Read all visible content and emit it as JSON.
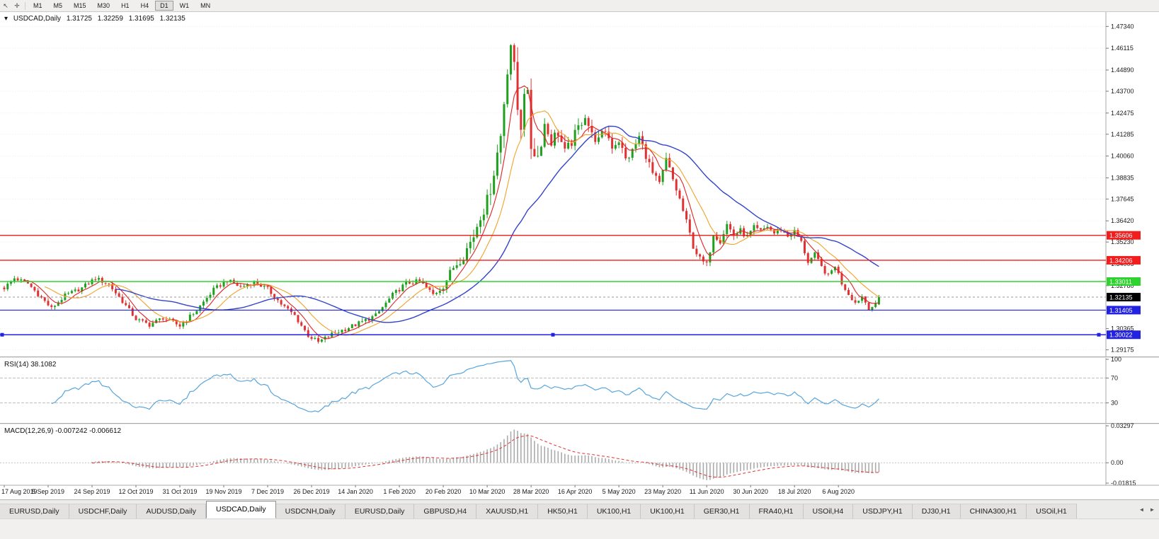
{
  "toolbar": {
    "icons": [
      {
        "name": "pointer-cursor-icon",
        "glyph": "↖"
      },
      {
        "name": "crosshair-icon",
        "glyph": "✛"
      }
    ],
    "timeframes": [
      "M1",
      "M5",
      "M15",
      "M30",
      "H1",
      "H4",
      "D1",
      "W1",
      "MN"
    ],
    "active_timeframe": "D1"
  },
  "chart": {
    "header": {
      "menu_icon": "▾",
      "symbol": "USDCAD,Daily",
      "open": "1.31725",
      "high": "1.32259",
      "low": "1.31695",
      "close": "1.32135"
    }
  },
  "chart_data": [
    {
      "type": "candlestick",
      "symbol": "USDCAD",
      "timeframe": "Daily",
      "ohlc": {
        "open": 1.31725,
        "high": 1.32259,
        "low": 1.31695,
        "close": 1.32135
      },
      "bars": 260,
      "x_label_every_bars": 13,
      "x_labels": [
        "17 Aug 2019",
        "5 Sep 2019",
        "24 Sep 2019",
        "12 Oct 2019",
        "31 Oct 2019",
        "19 Nov 2019",
        "7 Dec 2019",
        "26 Dec 2019",
        "14 Jan 2020",
        "1 Feb 2020",
        "20 Feb 2020",
        "10 Mar 2020",
        "28 Mar 2020",
        "16 Apr 2020",
        "5 May 2020",
        "23 May 2020",
        "11 Jun 2020",
        "30 Jun 2020",
        "18 Jul 2020",
        "6 Aug 2020"
      ],
      "y_axis_ticks": [
        "1.47340",
        "1.46115",
        "1.44890",
        "1.43700",
        "1.42475",
        "1.41285",
        "1.40060",
        "1.38835",
        "1.37645",
        "1.36420",
        "1.35230",
        "1.34005",
        "1.32780",
        "1.30365",
        "1.29175"
      ],
      "y_range": [
        1.288,
        1.4795
      ],
      "close_keypoints": [
        [
          0,
          1.3265
        ],
        [
          3,
          1.332
        ],
        [
          7,
          1.329
        ],
        [
          11,
          1.321
        ],
        [
          14,
          1.315
        ],
        [
          18,
          1.3222
        ],
        [
          23,
          1.3265
        ],
        [
          27,
          1.332
        ],
        [
          31,
          1.3285
        ],
        [
          35,
          1.319
        ],
        [
          39,
          1.309
        ],
        [
          43,
          1.3058
        ],
        [
          47,
          1.3098
        ],
        [
          52,
          1.3052
        ],
        [
          57,
          1.314
        ],
        [
          62,
          1.3255
        ],
        [
          66,
          1.3308
        ],
        [
          70,
          1.327
        ],
        [
          74,
          1.3298
        ],
        [
          78,
          1.3258
        ],
        [
          82,
          1.3175
        ],
        [
          86,
          1.311
        ],
        [
          90,
          1.2998
        ],
        [
          93,
          1.296
        ],
        [
          97,
          1.3005
        ],
        [
          104,
          1.3058
        ],
        [
          110,
          1.311
        ],
        [
          115,
          1.3225
        ],
        [
          119,
          1.3292
        ],
        [
          123,
          1.3302
        ],
        [
          127,
          1.3228
        ],
        [
          130,
          1.3278
        ],
        [
          133,
          1.3382
        ],
        [
          136,
          1.3448
        ],
        [
          139,
          1.356
        ],
        [
          141,
          1.3682
        ],
        [
          143,
          1.3745
        ],
        [
          145,
          1.3925
        ],
        [
          147,
          1.412
        ],
        [
          149,
          1.451
        ],
        [
          150,
          1.4642
        ],
        [
          151,
          1.4485
        ],
        [
          152,
          1.427
        ],
        [
          153,
          1.4185
        ],
        [
          154,
          1.439
        ],
        [
          155,
          1.4328
        ],
        [
          156,
          1.4062
        ],
        [
          158,
          1.4005
        ],
        [
          160,
          1.4185
        ],
        [
          162,
          1.4092
        ],
        [
          164,
          1.4142
        ],
        [
          166,
          1.4022
        ],
        [
          168,
          1.4085
        ],
        [
          170,
          1.4165
        ],
        [
          172,
          1.4238
        ],
        [
          174,
          1.4122
        ],
        [
          176,
          1.4092
        ],
        [
          178,
          1.4152
        ],
        [
          180,
          1.4062
        ],
        [
          182,
          1.4095
        ],
        [
          184,
          1.3985
        ],
        [
          186,
          1.4032
        ],
        [
          188,
          1.4112
        ],
        [
          190,
          1.4012
        ],
        [
          192,
          1.3905
        ],
        [
          194,
          1.3845
        ],
        [
          196,
          1.3985
        ],
        [
          198,
          1.3872
        ],
        [
          200,
          1.3762
        ],
        [
          202,
          1.3632
        ],
        [
          204,
          1.3502
        ],
        [
          206,
          1.3425
        ],
        [
          208,
          1.3392
        ],
        [
          210,
          1.3572
        ],
        [
          212,
          1.3532
        ],
        [
          214,
          1.3622
        ],
        [
          216,
          1.3562
        ],
        [
          218,
          1.3585
        ],
        [
          220,
          1.3552
        ],
        [
          222,
          1.3602
        ],
        [
          224,
          1.3582
        ],
        [
          226,
          1.3612
        ],
        [
          228,
          1.3572
        ],
        [
          230,
          1.3592
        ],
        [
          232,
          1.3556
        ],
        [
          234,
          1.3582
        ],
        [
          236,
          1.3522
        ],
        [
          238,
          1.3412
        ],
        [
          240,
          1.3452
        ],
        [
          242,
          1.3382
        ],
        [
          244,
          1.3332
        ],
        [
          246,
          1.3392
        ],
        [
          248,
          1.3292
        ],
        [
          250,
          1.3232
        ],
        [
          252,
          1.3182
        ],
        [
          254,
          1.3218
        ],
        [
          256,
          1.3152
        ],
        [
          258,
          1.317
        ],
        [
          259,
          1.32135
        ]
      ],
      "volatility_keypoints": [
        [
          0,
          0.003
        ],
        [
          90,
          0.0032
        ],
        [
          125,
          0.0035
        ],
        [
          136,
          0.0075
        ],
        [
          145,
          0.013
        ],
        [
          152,
          0.015
        ],
        [
          158,
          0.011
        ],
        [
          168,
          0.0075
        ],
        [
          185,
          0.006
        ],
        [
          200,
          0.0055
        ],
        [
          212,
          0.0048
        ],
        [
          230,
          0.0036
        ],
        [
          259,
          0.003
        ]
      ],
      "up_color": "#1fa11f",
      "down_color": "#e03232",
      "moving_averages": [
        {
          "name": "ma-fast",
          "period": 6,
          "color": "#e22222"
        },
        {
          "name": "ma-mid",
          "period": 13,
          "color": "#efa32a"
        },
        {
          "name": "ma-slow",
          "period": 34,
          "color": "#3344cc"
        }
      ],
      "horizontal_lines": [
        {
          "value": 1.35606,
          "label": "1.35606",
          "color": "#f21d1d",
          "width": 1.4,
          "handles": false
        },
        {
          "value": 1.34206,
          "label": "1.34206",
          "color": "#f21d1d",
          "width": 1.4,
          "handles": false
        },
        {
          "value": 1.33011,
          "label": "1.33011",
          "color": "#2fd32f",
          "width": 1.4,
          "handles": false
        },
        {
          "value": 1.31405,
          "label": "1.31405",
          "color": "#2222e2",
          "width": 1.2,
          "handles": false
        },
        {
          "value": 1.30022,
          "label": "1.30022",
          "color": "#2222e2",
          "width": 1.4,
          "handles": true
        }
      ],
      "current_price": {
        "value": 1.32135,
        "label": "1.32135",
        "bg": "#000000"
      }
    },
    {
      "type": "line",
      "indicator": "RSI",
      "label": "RSI(14) 38.1082",
      "period": 14,
      "current_value": 38.1082,
      "levels": [
        70,
        30
      ],
      "y_axis_ticks": [
        "100",
        "70",
        "30"
      ],
      "y_range": [
        0,
        100
      ],
      "line_color": "#57a5dd"
    },
    {
      "type": "macd",
      "indicator": "MACD",
      "label": "MACD(12,26,9) -0.007242 -0.006612",
      "fast": 12,
      "slow": 26,
      "signal": 9,
      "macd_value": -0.007242,
      "signal_value": -0.006612,
      "y_axis_ticks": [
        "0.03297",
        "0.00",
        "-0.01815"
      ],
      "y_range": [
        -0.01815,
        0.03297
      ],
      "histogram_color": "#ababab",
      "signal_color": "#e33030"
    }
  ],
  "tabs": {
    "items": [
      "EURUSD,Daily",
      "USDCHF,Daily",
      "AUDUSD,Daily",
      "USDCAD,Daily",
      "USDCNH,Daily",
      "EURUSD,Daily",
      "GBPUSD,H4",
      "XAUUSD,H1",
      "HK50,H1",
      "UK100,H1",
      "UK100,H1",
      "GER30,H1",
      "FRA40,H1",
      "USOil,H4",
      "USDJPY,H1",
      "DJ30,H1",
      "CHINA300,H1",
      "USOil,H1"
    ],
    "active_index": 3,
    "scroll_left_icon": "◄",
    "scroll_right_icon": "►"
  }
}
